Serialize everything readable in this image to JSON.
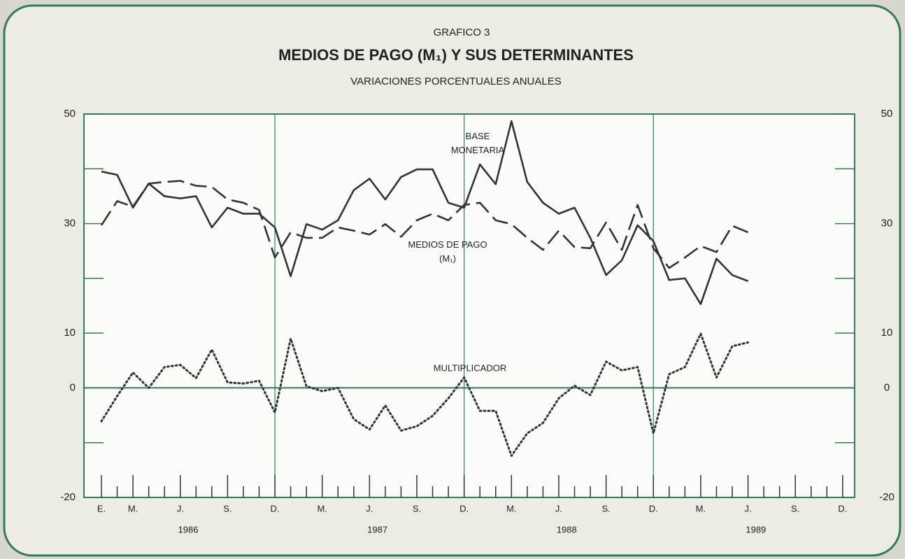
{
  "chart_data": {
    "type": "line",
    "kicker": "GRAFICO 3",
    "title": "MEDIOS DE PAGO (M₁) Y SUS DETERMINANTES",
    "subtitle": "VARIACIONES PORCENTUALES ANUALES",
    "categories": [
      "E.",
      null,
      "M.",
      null,
      null,
      "J.",
      null,
      null,
      "S.",
      null,
      null,
      "D.",
      null,
      null,
      "M.",
      null,
      null,
      "J.",
      null,
      null,
      "S.",
      null,
      null,
      "D.",
      null,
      null,
      "M.",
      null,
      null,
      "J.",
      null,
      null,
      "S.",
      null,
      null,
      "D.",
      null,
      null,
      "M.",
      null,
      null,
      "J.",
      null,
      null,
      "S.",
      null,
      null,
      "D."
    ],
    "years": [
      "1986",
      "1987",
      "1988",
      "1989"
    ],
    "ylim": [
      -20,
      50
    ],
    "yticks": [
      -20,
      0,
      10,
      30,
      50
    ],
    "yminor": [
      -10,
      20,
      40
    ],
    "series": [
      {
        "name": "BASE MONETARIA",
        "color": "#333333",
        "style": "solid",
        "values": [
          39.5,
          38.9,
          32.9,
          37.3,
          35.0,
          34.6,
          35.0,
          29.3,
          32.9,
          31.8,
          31.8,
          29.3,
          20.4,
          29.9,
          28.9,
          30.6,
          36.1,
          38.2,
          34.4,
          38.5,
          39.9,
          39.9,
          33.8,
          32.9,
          40.8,
          37.2,
          48.7,
          37.6,
          33.8,
          31.8,
          32.9,
          27.4,
          20.6,
          23.3,
          29.7,
          26.8,
          19.7,
          20.0,
          15.3,
          23.6,
          20.6,
          19.5,
          null,
          null,
          null,
          null,
          null,
          null
        ]
      },
      {
        "name": "MEDIOS DE PAGO (M₁)",
        "color": "#333333",
        "style": "dashed",
        "values": [
          29.7,
          34.1,
          33.1,
          37.3,
          37.6,
          37.8,
          36.9,
          36.7,
          34.4,
          33.8,
          32.5,
          23.8,
          28.4,
          27.4,
          27.4,
          29.3,
          28.7,
          28.0,
          29.9,
          27.6,
          30.6,
          31.8,
          30.6,
          33.4,
          33.8,
          30.6,
          29.9,
          27.4,
          25.2,
          28.7,
          25.7,
          25.5,
          30.2,
          25.2,
          33.4,
          25.5,
          21.9,
          23.8,
          25.9,
          24.8,
          29.6,
          28.4,
          null,
          null,
          null,
          null,
          null,
          null
        ]
      },
      {
        "name": "MULTIPLICADOR",
        "color": "#333333",
        "style": "dotted",
        "values": [
          -6.1,
          -1.5,
          2.8,
          0,
          3.8,
          4.2,
          1.8,
          7.0,
          1.0,
          0.8,
          1.3,
          -4.5,
          9.0,
          0.3,
          -0.6,
          0,
          -5.7,
          -7.6,
          -3.2,
          -7.8,
          -7.0,
          -5.1,
          -1.9,
          1.9,
          -4.2,
          -4.2,
          -12.4,
          -8.3,
          -6.4,
          -1.9,
          0.4,
          -1.3,
          4.8,
          3.2,
          3.8,
          -8.3,
          2.5,
          3.8,
          9.9,
          1.9,
          7.6,
          8.3,
          null,
          null,
          null,
          null,
          null,
          null
        ]
      }
    ],
    "frame_color": "#2f7d5d"
  }
}
